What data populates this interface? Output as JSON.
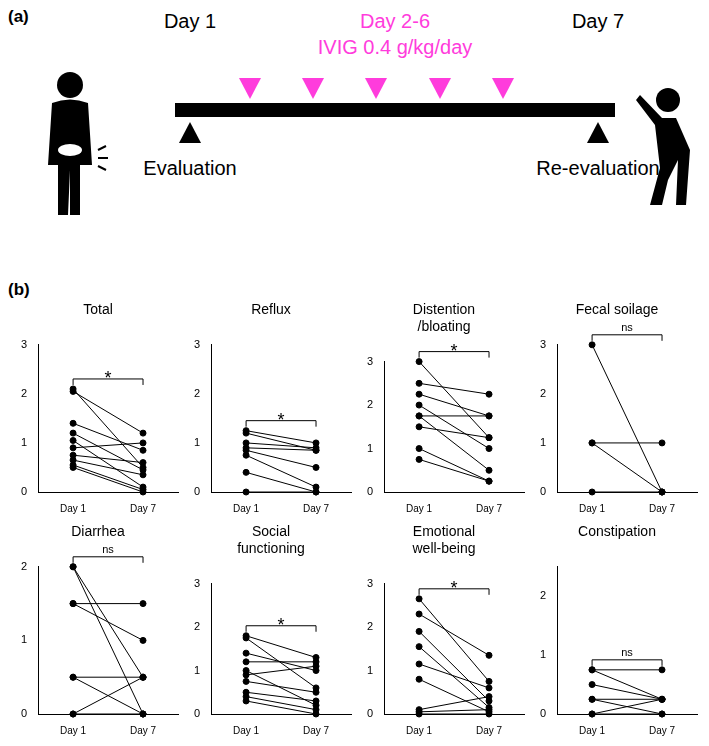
{
  "panel_a": {
    "label": "(a)",
    "day_start": "Day 1",
    "treatment_days": "Day 2-6",
    "treatment": "IVIG 0.4 g/kg/day",
    "day_end": "Day 7",
    "start_label": "Evaluation",
    "end_label": "Re-evaluation"
  },
  "panel_b": {
    "label": "(b)"
  },
  "chart_data": [
    {
      "type": "line",
      "title": "Total",
      "categories": [
        "Day 1",
        "Day 7"
      ],
      "color": "#000000",
      "marker": "circle",
      "grid": false,
      "ylim": [
        0,
        3
      ],
      "yticks": [
        0,
        1,
        2,
        3
      ],
      "annotations": [
        "*"
      ],
      "series": [
        {
          "values": [
            2.1,
            0.5
          ]
        },
        {
          "values": [
            2.05,
            1.2
          ]
        },
        {
          "values": [
            1.4,
            0.85
          ]
        },
        {
          "values": [
            1.2,
            0.45
          ]
        },
        {
          "values": [
            1.05,
            0.1
          ]
        },
        {
          "values": [
            0.9,
            1.0
          ]
        },
        {
          "values": [
            0.75,
            0.6
          ]
        },
        {
          "values": [
            0.65,
            0.35
          ]
        },
        {
          "values": [
            0.55,
            0.05
          ]
        },
        {
          "values": [
            0.5,
            0.0
          ]
        }
      ]
    },
    {
      "type": "line",
      "title": "Reflux",
      "categories": [
        "Day 1",
        "Day 7"
      ],
      "color": "#000000",
      "marker": "circle",
      "grid": false,
      "ylim": [
        0,
        3
      ],
      "yticks": [
        0,
        1,
        2,
        3
      ],
      "annotations": [
        "*"
      ],
      "series": [
        {
          "values": [
            1.25,
            1.0
          ]
        },
        {
          "values": [
            1.2,
            0.85
          ]
        },
        {
          "values": [
            1.0,
            0.9
          ]
        },
        {
          "values": [
            0.9,
            0.85
          ]
        },
        {
          "values": [
            0.85,
            0.5
          ]
        },
        {
          "values": [
            0.75,
            0.1
          ]
        },
        {
          "values": [
            0.4,
            0.0
          ]
        },
        {
          "values": [
            0.0,
            0.0
          ]
        }
      ]
    },
    {
      "type": "line",
      "title": "Distention\n/bloating",
      "categories": [
        "Day 1",
        "Day 7"
      ],
      "color": "#000000",
      "marker": "circle",
      "grid": false,
      "ylim": [
        0,
        3
      ],
      "yticks": [
        0,
        1,
        2,
        3
      ],
      "annotations": [
        "*"
      ],
      "series": [
        {
          "values": [
            3.0,
            1.25
          ]
        },
        {
          "values": [
            2.5,
            2.25
          ]
        },
        {
          "values": [
            2.25,
            1.75
          ]
        },
        {
          "values": [
            2.0,
            1.0
          ]
        },
        {
          "values": [
            1.75,
            1.75
          ]
        },
        {
          "values": [
            1.75,
            0.5
          ]
        },
        {
          "values": [
            1.5,
            1.25
          ]
        },
        {
          "values": [
            1.0,
            0.25
          ]
        },
        {
          "values": [
            0.75,
            0.25
          ]
        }
      ]
    },
    {
      "type": "line",
      "title": "Fecal soilage",
      "categories": [
        "Day 1",
        "Day 7"
      ],
      "color": "#000000",
      "marker": "circle",
      "grid": false,
      "ylim": [
        0,
        3
      ],
      "yticks": [
        0,
        1,
        2,
        3
      ],
      "annotations": [
        "ns"
      ],
      "series": [
        {
          "values": [
            3,
            0
          ]
        },
        {
          "values": [
            1,
            1
          ]
        },
        {
          "values": [
            1,
            0
          ]
        },
        {
          "values": [
            0,
            0
          ]
        }
      ]
    },
    {
      "type": "line",
      "title": "Diarrhea",
      "categories": [
        "Day 1",
        "Day 7"
      ],
      "color": "#000000",
      "marker": "circle",
      "grid": false,
      "ylim": [
        0,
        2
      ],
      "yticks": [
        0,
        1,
        2
      ],
      "annotations": [
        "ns"
      ],
      "series": [
        {
          "values": [
            2,
            0.5
          ]
        },
        {
          "values": [
            2,
            0
          ]
        },
        {
          "values": [
            1.5,
            1.5
          ]
        },
        {
          "values": [
            1.5,
            1.0
          ]
        },
        {
          "values": [
            0.5,
            0.5
          ]
        },
        {
          "values": [
            0.5,
            0
          ]
        },
        {
          "values": [
            0,
            0.5
          ]
        },
        {
          "values": [
            0,
            0
          ]
        }
      ]
    },
    {
      "type": "line",
      "title": "Social\nfunctioning",
      "categories": [
        "Day 1",
        "Day 7"
      ],
      "color": "#000000",
      "marker": "circle",
      "grid": false,
      "ylim": [
        0,
        3
      ],
      "yticks": [
        0,
        1,
        2,
        3
      ],
      "annotations": [
        "*"
      ],
      "series": [
        {
          "values": [
            1.8,
            1.3
          ]
        },
        {
          "values": [
            1.75,
            0.6
          ]
        },
        {
          "values": [
            1.4,
            1.0
          ]
        },
        {
          "values": [
            1.2,
            1.2
          ]
        },
        {
          "values": [
            1.0,
            0.2
          ]
        },
        {
          "values": [
            0.9,
            1.1
          ]
        },
        {
          "values": [
            0.75,
            0.5
          ]
        },
        {
          "values": [
            0.5,
            0.3
          ]
        },
        {
          "values": [
            0.4,
            0.1
          ]
        },
        {
          "values": [
            0.3,
            0.0
          ]
        }
      ]
    },
    {
      "type": "line",
      "title": "Emotional\nwell-being",
      "categories": [
        "Day 1",
        "Day 7"
      ],
      "color": "#000000",
      "marker": "circle",
      "grid": false,
      "ylim": [
        0,
        3
      ],
      "yticks": [
        0,
        1,
        2,
        3
      ],
      "annotations": [
        "*"
      ],
      "series": [
        {
          "values": [
            2.65,
            0.75
          ]
        },
        {
          "values": [
            2.3,
            1.35
          ]
        },
        {
          "values": [
            1.9,
            0.3
          ]
        },
        {
          "values": [
            1.55,
            0.15
          ]
        },
        {
          "values": [
            1.15,
            0.6
          ]
        },
        {
          "values": [
            0.8,
            0.05
          ]
        },
        {
          "values": [
            0.1,
            0.4
          ]
        },
        {
          "values": [
            0.05,
            0.1
          ]
        },
        {
          "values": [
            0,
            0
          ]
        }
      ]
    },
    {
      "type": "line",
      "title": "Constipation",
      "categories": [
        "Day 1",
        "Day 7"
      ],
      "color": "#000000",
      "marker": "circle",
      "grid": false,
      "ylim": [
        0,
        2.5
      ],
      "yticks": [
        0,
        1,
        2
      ],
      "annotations": [
        "ns"
      ],
      "series": [
        {
          "values": [
            0.75,
            0.75
          ]
        },
        {
          "values": [
            0.75,
            0.25
          ]
        },
        {
          "values": [
            0.5,
            0.25
          ]
        },
        {
          "values": [
            0.25,
            0.25
          ]
        },
        {
          "values": [
            0.25,
            0
          ]
        },
        {
          "values": [
            0,
            0.25
          ]
        },
        {
          "values": [
            0,
            0
          ]
        }
      ]
    }
  ]
}
